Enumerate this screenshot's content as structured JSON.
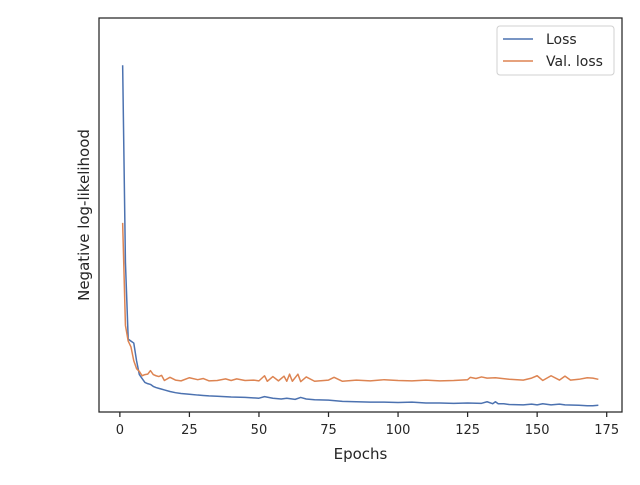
{
  "chart_data": {
    "type": "line",
    "title": "",
    "xlabel": "Epochs",
    "ylabel": "Negative log-likelihood",
    "xlim": [
      -7.5,
      180.5
    ],
    "ylim": [
      0,
      100
    ],
    "xticks": [
      0,
      25,
      50,
      75,
      100,
      125,
      150,
      175
    ],
    "y_tick_labels_visible": false,
    "grid": false,
    "legend_position": "top-right",
    "series": [
      {
        "name": "Loss",
        "color": "#4c72b0",
        "x": [
          1,
          2,
          3,
          4,
          5,
          6,
          7,
          8,
          9,
          10,
          11,
          12,
          13,
          14,
          15,
          16,
          18,
          20,
          22,
          25,
          28,
          30,
          32,
          35,
          40,
          45,
          50,
          52,
          55,
          58,
          60,
          63,
          65,
          67,
          70,
          75,
          80,
          85,
          90,
          95,
          100,
          105,
          110,
          115,
          120,
          125,
          130,
          132,
          134,
          135,
          136,
          138,
          140,
          145,
          148,
          150,
          152,
          155,
          158,
          160,
          165,
          168,
          170,
          172
        ],
        "values": [
          88,
          38,
          18.5,
          18,
          17.5,
          13,
          9.5,
          8.5,
          7.5,
          7.2,
          7,
          6.5,
          6.2,
          6,
          5.8,
          5.6,
          5.2,
          4.9,
          4.7,
          4.5,
          4.3,
          4.2,
          4.1,
          4,
          3.8,
          3.7,
          3.5,
          3.9,
          3.5,
          3.3,
          3.5,
          3.2,
          3.7,
          3.3,
          3.1,
          3,
          2.7,
          2.6,
          2.5,
          2.5,
          2.4,
          2.5,
          2.3,
          2.3,
          2.2,
          2.3,
          2.2,
          2.6,
          2.1,
          2.6,
          2.1,
          2.1,
          1.9,
          1.8,
          2,
          1.8,
          2.1,
          1.8,
          2,
          1.8,
          1.7,
          1.6,
          1.6,
          1.7
        ]
      },
      {
        "name": "Val. loss",
        "color": "#dd8452",
        "x": [
          1,
          2,
          3,
          4,
          5,
          6,
          7,
          8,
          9,
          10,
          11,
          12,
          13,
          14,
          15,
          16,
          18,
          20,
          22,
          25,
          28,
          30,
          32,
          35,
          38,
          40,
          42,
          45,
          48,
          50,
          52,
          53,
          55,
          57,
          59,
          60,
          61,
          62,
          64,
          65,
          67,
          70,
          75,
          77,
          80,
          85,
          90,
          95,
          100,
          105,
          110,
          115,
          120,
          125,
          126,
          128,
          130,
          132,
          135,
          140,
          145,
          148,
          150,
          152,
          155,
          158,
          160,
          162,
          165,
          168,
          170,
          172
        ],
        "values": [
          48,
          22,
          18,
          16.5,
          13,
          11,
          10.3,
          9.2,
          9.5,
          9.6,
          10.5,
          9.5,
          9.2,
          9,
          9.3,
          8,
          8.8,
          8.1,
          7.9,
          8.7,
          8.2,
          8.5,
          7.9,
          8,
          8.4,
          8,
          8.4,
          8,
          8.1,
          7.9,
          9.2,
          7.8,
          9,
          7.9,
          9.1,
          7.8,
          9.6,
          7.8,
          9.6,
          7.7,
          8.9,
          7.8,
          8.1,
          8.8,
          7.8,
          8.1,
          7.9,
          8.2,
          8,
          7.9,
          8.1,
          7.9,
          8,
          8.2,
          8.8,
          8.5,
          8.9,
          8.6,
          8.7,
          8.3,
          8.1,
          8.6,
          9.2,
          8,
          9.2,
          8.1,
          9.1,
          8.1,
          8.3,
          8.7,
          8.6,
          8.3
        ]
      }
    ]
  }
}
